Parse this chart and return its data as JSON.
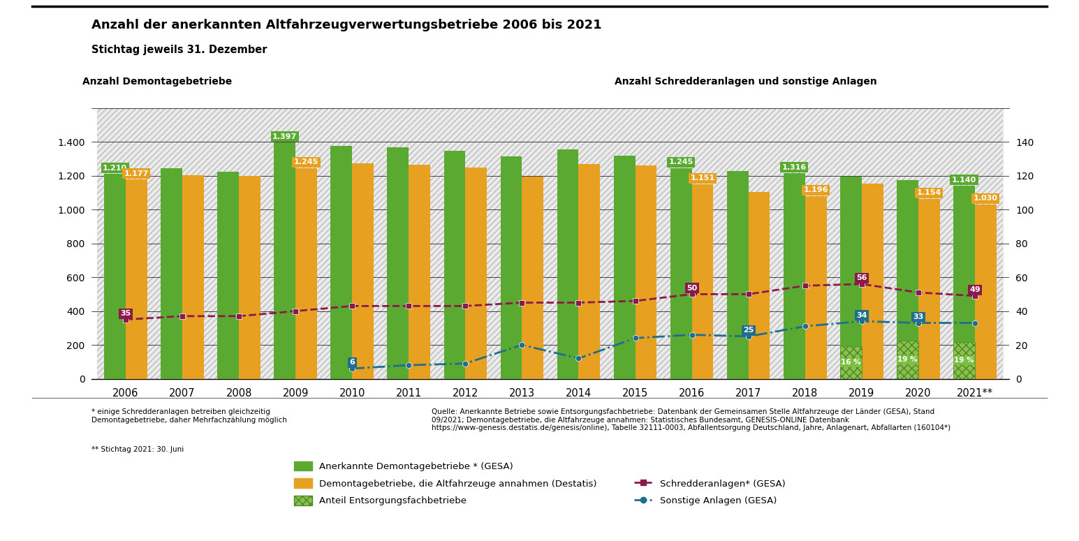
{
  "years": [
    2006,
    2007,
    2008,
    2009,
    2010,
    2011,
    2012,
    2013,
    2014,
    2015,
    2016,
    2017,
    2018,
    2019,
    2020,
    2021
  ],
  "year_labels": [
    "2006",
    "2007",
    "2008",
    "2009",
    "2010",
    "2011",
    "2012",
    "2013",
    "2014",
    "2015",
    "2016",
    "2017",
    "2018",
    "2019",
    "2020",
    "2021**"
  ],
  "gesa_bars": [
    1210,
    1245,
    1225,
    1397,
    1375,
    1370,
    1350,
    1316,
    1355,
    1320,
    1245,
    1230,
    1215,
    1195,
    1175,
    1140
  ],
  "destatis_bars": [
    1177,
    1205,
    1200,
    1245,
    1275,
    1265,
    1250,
    1196,
    1270,
    1260,
    1151,
    1105,
    1080,
    1154,
    1064,
    1030
  ],
  "schredder_line": [
    35,
    37,
    37,
    40,
    43,
    43,
    43,
    45,
    45,
    46,
    50,
    50,
    55,
    56,
    51,
    49
  ],
  "sonstige_line": [
    null,
    null,
    null,
    null,
    6,
    8,
    9,
    20,
    12,
    24,
    26,
    25,
    31,
    34,
    33,
    33
  ],
  "anteil_pct": [
    null,
    null,
    null,
    null,
    null,
    null,
    null,
    null,
    null,
    null,
    null,
    null,
    null,
    16,
    19,
    19
  ],
  "gesa_annot_idx": [
    0,
    3,
    10,
    12,
    15
  ],
  "gesa_annot_vals": [
    "1.210",
    "1.397",
    "1.245",
    "1.316",
    "1.140"
  ],
  "destatis_annot_idx": [
    0,
    3,
    10,
    12,
    14,
    15
  ],
  "destatis_annot_vals": [
    "1.177",
    "1.245",
    "1.151",
    "1.196",
    "1.154",
    "1.030"
  ],
  "schredder_annot_idx": [
    0,
    10,
    13,
    15
  ],
  "schredder_annot_vals": [
    "35",
    "50",
    "56",
    "49"
  ],
  "sonstige_annot_idx": [
    4,
    11,
    13,
    14
  ],
  "sonstige_annot_vals": [
    "6",
    "25",
    "34",
    "33"
  ],
  "anteil_annot_idx": [
    13,
    14,
    15
  ],
  "anteil_annot_vals": [
    "16 %",
    "19 %",
    "19 %"
  ],
  "color_gesa": "#5aaa32",
  "color_destatis": "#e8a020",
  "color_schredder": "#8b1a4a",
  "color_sonstige": "#1e6e8c",
  "color_anteil_bg": "#7bbf40",
  "title": "Anzahl der anerkannten Altfahrzeugverwertungsbetriebe 2006 bis 2021",
  "subtitle": "Stichtag jeweils 31. Dezember",
  "left_axis_label": "Anzahl Demontagebetriebe",
  "right_axis_label": "Anzahl Schredderanlagen und sonstige Anlagen",
  "legend_gesa": "Anerkannte Demontagebetriebe * (GESA)",
  "legend_destatis": "Demontagebetriebe, die Altfahrzeuge annahmen (Destatis)",
  "legend_anteil": "Anteil Entsorgungsfachbetriebe",
  "legend_schredder": "Schredderanlagen* (GESA)",
  "legend_sonstige": "Sonstige Anlagen (GESA)",
  "footnote1": "* einige Schredderanlagen betreiben gleichzeitig\nDemontagebetriebe, daher Mehrfachzählung möglich",
  "footnote2": "** Stichtag 2021: 30. Juni",
  "source": "Quelle: Anerkannte Betriebe sowie Entsorgungsfachbetriebe: Datenbank der Gemeinsamen Stelle Altfahrzeuge der Länder (GESA), Stand\n09/2021; Demontagebetriebe, die Altfahrzeuge annahmen: Statistisches Bundesamt, GENESIS-ONLINE Datenbank\nhttps://www-genesis.destatis.de/genesis/online), Tabelle 32111-0003, Abfallentsorgung Deutschland, Jahre, Anlagenart, Abfallarten (160104*)"
}
